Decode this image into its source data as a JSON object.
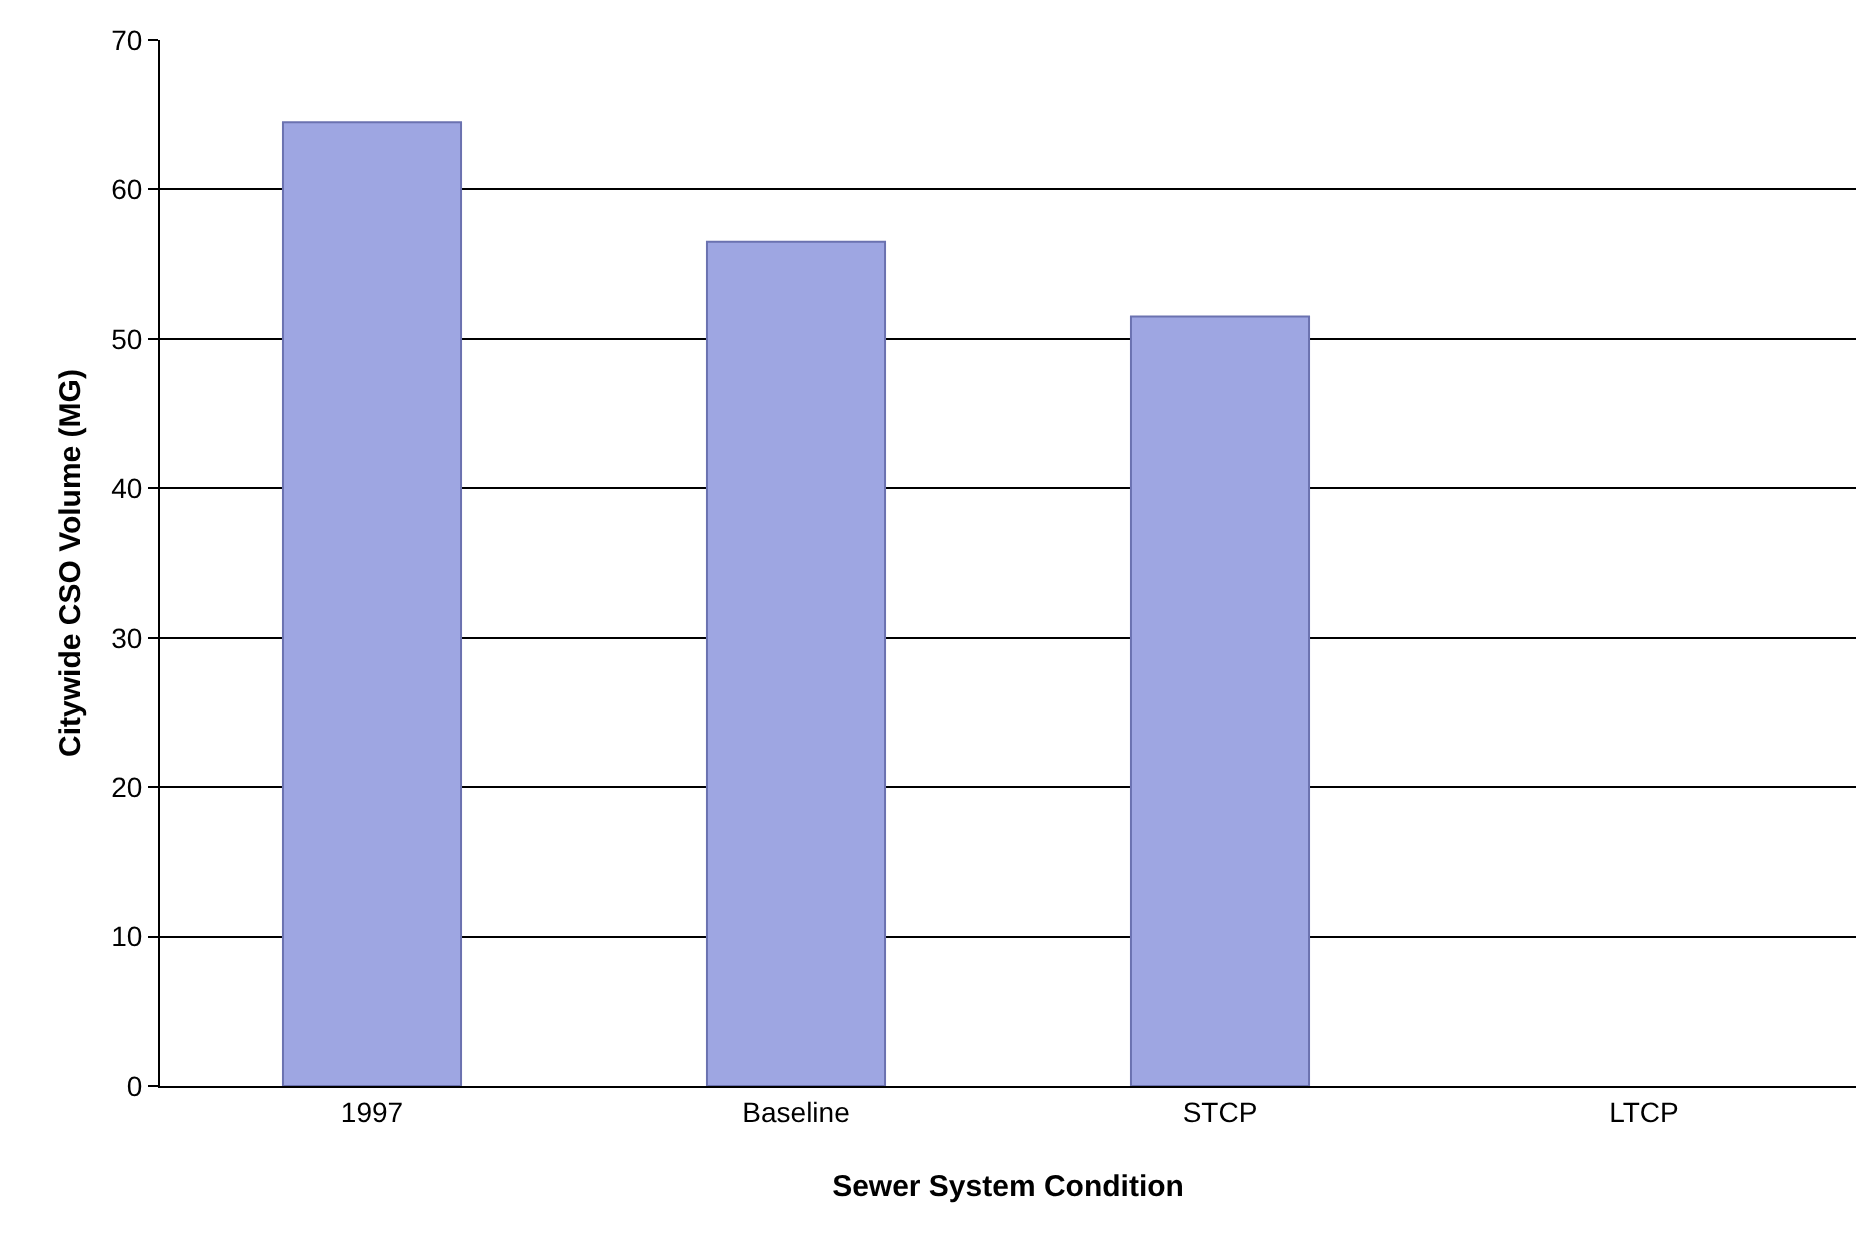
{
  "chart_data": {
    "type": "bar",
    "xlabel": "Sewer System Condition",
    "ylabel": "Citywide CSO Volume (MG)",
    "categories": [
      "1997",
      "Baseline",
      "STCP",
      "LTCP"
    ],
    "values": [
      64.5,
      56.5,
      51.5,
      null
    ],
    "color": "#9ea6e2",
    "ylim": [
      0,
      70
    ],
    "yticks": [
      0,
      10,
      20,
      30,
      40,
      50,
      60,
      70
    ],
    "grid": "y"
  }
}
